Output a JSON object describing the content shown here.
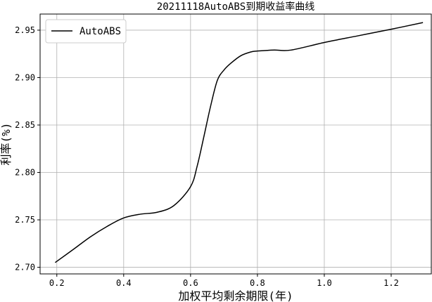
{
  "chart_data": {
    "type": "line",
    "title": "20211118AutoABS到期收益率曲线",
    "xlabel": "加权平均剩余期限(年)",
    "ylabel": "利率(%)",
    "xlim": [
      0.15,
      1.32
    ],
    "ylim": [
      2.693,
      2.967
    ],
    "xticks": [
      0.2,
      0.4,
      0.6,
      0.8,
      1.0,
      1.2
    ],
    "xtick_labels": [
      "0.2",
      "0.4",
      "0.6",
      "0.8",
      "1.0",
      "1.2"
    ],
    "yticks": [
      2.7,
      2.75,
      2.8,
      2.85,
      2.9,
      2.95
    ],
    "ytick_labels": [
      "2.70",
      "2.75",
      "2.80",
      "2.85",
      "2.90",
      "2.95"
    ],
    "grid": true,
    "legend_position": "upper-left",
    "series": [
      {
        "name": "AutoABS",
        "color": "#000000",
        "x": [
          0.195,
          0.25,
          0.3,
          0.35,
          0.4,
          0.45,
          0.5,
          0.55,
          0.6,
          0.62,
          0.64,
          0.66,
          0.68,
          0.7,
          0.72,
          0.75,
          0.78,
          0.8,
          0.85,
          0.9,
          1.0,
          1.1,
          1.2,
          1.295
        ],
        "y": [
          2.705,
          2.719,
          2.732,
          2.743,
          2.752,
          2.756,
          2.758,
          2.765,
          2.785,
          2.807,
          2.838,
          2.87,
          2.897,
          2.908,
          2.915,
          2.923,
          2.927,
          2.928,
          2.929,
          2.929,
          2.937,
          2.944,
          2.951,
          2.958
        ]
      }
    ]
  }
}
